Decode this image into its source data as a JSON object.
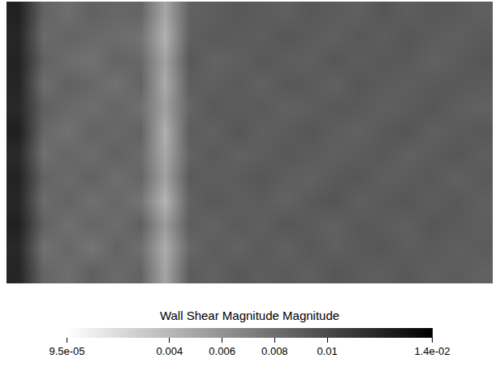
{
  "chart_data": {
    "type": "heatmap",
    "colorbar_title": "Wall Shear Magnitude Magnitude",
    "color_range": [
      9.5e-05,
      0.014
    ],
    "color_ticks": [
      {
        "value": 9.5e-05,
        "label": "9.5e-05"
      },
      0.004,
      0.006,
      0.008,
      0.01,
      {
        "value": 0.014,
        "label": "1.4e-02"
      }
    ],
    "tick_labels": false,
    "z": [
      [
        0.012,
        0.0085,
        0.008,
        0.0088,
        0.0082,
        0.0086,
        0.005,
        0.009,
        0.0087,
        0.0092,
        0.0089,
        0.0091,
        0.0088,
        0.0093,
        0.009,
        0.0089,
        0.0092,
        0.0088,
        0.009,
        0.0087
      ],
      [
        0.0118,
        0.0078,
        0.0084,
        0.0076,
        0.0086,
        0.008,
        0.0046,
        0.0084,
        0.009,
        0.0086,
        0.0091,
        0.0087,
        0.0092,
        0.0088,
        0.0091,
        0.0093,
        0.0089,
        0.0091,
        0.0088,
        0.009
      ],
      [
        0.0122,
        0.0087,
        0.0079,
        0.0085,
        0.0081,
        0.0088,
        0.0055,
        0.0089,
        0.0086,
        0.0091,
        0.0088,
        0.0093,
        0.009,
        0.0087,
        0.0092,
        0.009,
        0.0088,
        0.0093,
        0.0091,
        0.0089
      ],
      [
        0.0119,
        0.0081,
        0.0086,
        0.0079,
        0.0084,
        0.0077,
        0.0042,
        0.0087,
        0.0092,
        0.0088,
        0.009,
        0.0086,
        0.0091,
        0.0094,
        0.0088,
        0.0091,
        0.0093,
        0.0089,
        0.0092,
        0.0088
      ],
      [
        0.0121,
        0.0086,
        0.0082,
        0.0087,
        0.008,
        0.0085,
        0.0052,
        0.0091,
        0.0088,
        0.009,
        0.0093,
        0.0089,
        0.0087,
        0.0091,
        0.0093,
        0.0088,
        0.009,
        0.0092,
        0.0087,
        0.0091
      ],
      [
        0.0117,
        0.0079,
        0.0085,
        0.0081,
        0.0087,
        0.0082,
        0.0048,
        0.0086,
        0.0091,
        0.0087,
        0.0089,
        0.0092,
        0.009,
        0.0088,
        0.009,
        0.0092,
        0.0087,
        0.009,
        0.0093,
        0.0089
      ],
      [
        0.0123,
        0.0084,
        0.0078,
        0.0086,
        0.0083,
        0.0087,
        0.0044,
        0.009,
        0.0087,
        0.0093,
        0.0088,
        0.009,
        0.0093,
        0.0089,
        0.0087,
        0.0091,
        0.0094,
        0.0088,
        0.009,
        0.0092
      ],
      [
        0.0118,
        0.0088,
        0.0083,
        0.008,
        0.0085,
        0.0079,
        0.0053,
        0.0085,
        0.0092,
        0.0089,
        0.0091,
        0.0087,
        0.0089,
        0.0092,
        0.0091,
        0.0088,
        0.009,
        0.0093,
        0.0089,
        0.0087
      ],
      [
        0.012,
        0.008,
        0.0087,
        0.0084,
        0.0078,
        0.0086,
        0.0047,
        0.0089,
        0.0088,
        0.0091,
        0.0087,
        0.0092,
        0.0091,
        0.0087,
        0.0093,
        0.009,
        0.0089,
        0.0091,
        0.0092,
        0.009
      ],
      [
        0.0121,
        0.0087,
        0.0081,
        0.0078,
        0.0086,
        0.0083,
        0.0051,
        0.0092,
        0.0086,
        0.0088,
        0.0092,
        0.0089,
        0.0088,
        0.0093,
        0.0089,
        0.0092,
        0.0091,
        0.0087,
        0.009,
        0.0093
      ],
      [
        0.0119,
        0.0082,
        0.0086,
        0.0083,
        0.0081,
        0.0078,
        0.0043,
        0.0088,
        0.0091,
        0.009,
        0.0089,
        0.0093,
        0.009,
        0.0088,
        0.0092,
        0.0089,
        0.0093,
        0.009,
        0.0088,
        0.0091
      ],
      [
        0.0122,
        0.0086,
        0.008,
        0.0087,
        0.0084,
        0.0085,
        0.0049,
        0.0087,
        0.0089,
        0.0092,
        0.009,
        0.0088,
        0.0092,
        0.009,
        0.0088,
        0.0093,
        0.0089,
        0.0092,
        0.0091,
        0.0088
      ]
    ]
  }
}
